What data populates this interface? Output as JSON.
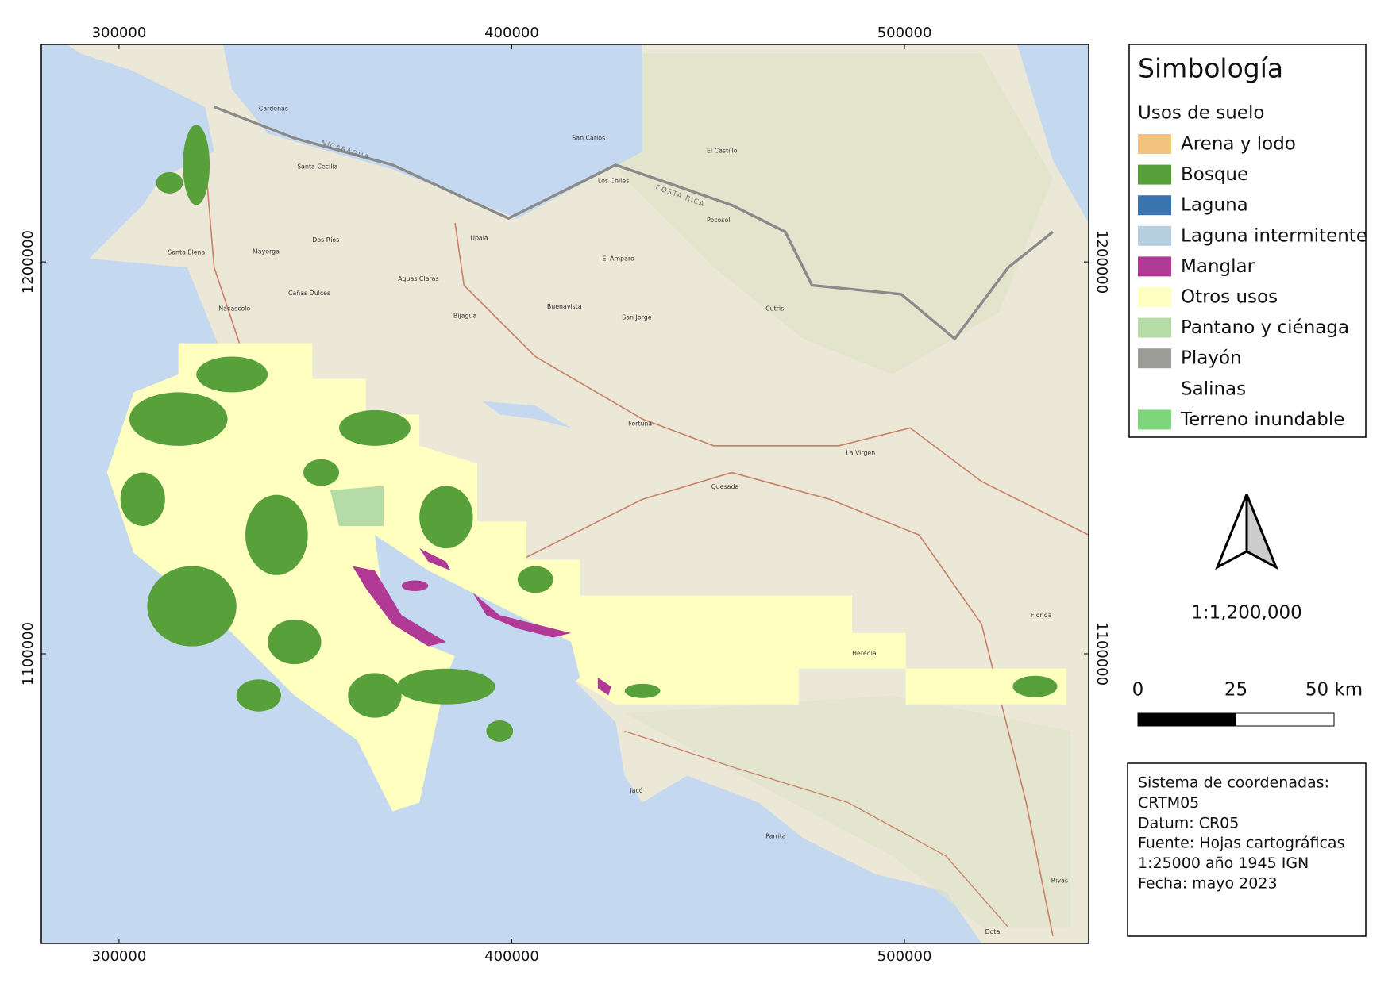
{
  "map": {
    "xlim": [
      280200,
      546900
    ],
    "ylim": [
      1026100,
      1255500
    ],
    "xticks": [
      300000,
      400000,
      500000
    ],
    "yticks": [
      1200000,
      1100000
    ]
  },
  "legend": {
    "title": "Simbología",
    "subtitle": "Usos de suelo",
    "items": [
      {
        "label": "Arena y lodo",
        "color": "#f2c27f"
      },
      {
        "label": "Bosque",
        "color": "#57a03a"
      },
      {
        "label": "Laguna",
        "color": "#3a75b0"
      },
      {
        "label": "Laguna intermitente",
        "color": "#b6cfe0"
      },
      {
        "label": "Manglar",
        "color": "#b03a96"
      },
      {
        "label": "Otros usos",
        "color": "#ffffc0"
      },
      {
        "label": "Pantano y ciénaga",
        "color": "#b5dca7"
      },
      {
        "label": "Playón",
        "color": "#9b9b97"
      },
      {
        "label": "Salinas",
        "color": "#ffffff"
      },
      {
        "label": "Terreno inundable",
        "color": "#7fd67a"
      }
    ]
  },
  "scale_ratio": "1:1,200,000",
  "scale_bar": {
    "ticks": [
      0,
      25,
      {
        "value": 50,
        "label": "50 km"
      }
    ]
  },
  "info": [
    "Sistema de coordenadas:",
    "CRTM05",
    "Datum: CR05",
    "Fuente: Hojas cartográficas",
    "1:25000 año 1945 IGN",
    "Fecha: mayo 2023"
  ],
  "place_names": [
    "NICARAGUA",
    "COSTA RICA",
    "Cardenas",
    "Santa Cecilia",
    "Upala",
    "San Carlos",
    "Los Chiles",
    "El Castillo",
    "Pocosol",
    "Dos Ríos",
    "Santa Elena",
    "Mayorga",
    "Cañas Dulces",
    "Nacascolo",
    "Aguas Claras",
    "Bijagua",
    "Buenavista",
    "San Jorge",
    "El Amparo",
    "Cutris",
    "Fortuna",
    "La Virgen",
    "Quesada",
    "Florida",
    "Heredia",
    "Jacó",
    "Parrita",
    "Dota",
    "Rivas"
  ]
}
